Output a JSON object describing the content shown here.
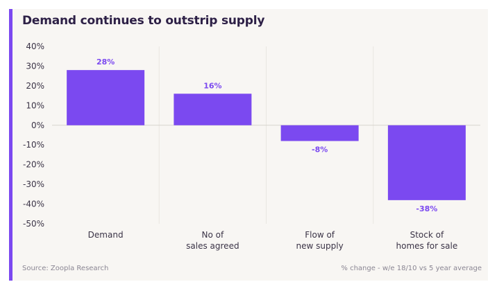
{
  "colors": {
    "accent": "#7b49f0",
    "bar": "#7b49f0",
    "label": "#7b49f0",
    "background": "#f8f6f3",
    "text": "#2d2046",
    "gridline": "#e9e6e1"
  },
  "footer": {
    "source": "Source: Zoopla Research",
    "note": "% change - w/e 18/10 vs 5 year average"
  },
  "chart_data": {
    "type": "bar",
    "title": "Demand continues to outstrip supply",
    "categories": [
      [
        "Demand"
      ],
      [
        "No of",
        "sales agreed"
      ],
      [
        "Flow of",
        "new supply"
      ],
      [
        "Stock of",
        "homes for sale"
      ]
    ],
    "values": [
      28,
      16,
      -8,
      -38
    ],
    "data_labels": [
      "28%",
      "16%",
      "-8%",
      "-38%"
    ],
    "ylim": [
      -50,
      40
    ],
    "yticks": [
      40,
      30,
      20,
      10,
      0,
      -10,
      -20,
      -30,
      -40,
      -50
    ],
    "ytick_labels": [
      "40%",
      "30%",
      "20%",
      "10%",
      "0%",
      "-10%",
      "-20%",
      "-30%",
      "-40%",
      "-50%"
    ],
    "xlabel": "",
    "ylabel": "",
    "grid": "vertical-faint",
    "legend": "none"
  }
}
